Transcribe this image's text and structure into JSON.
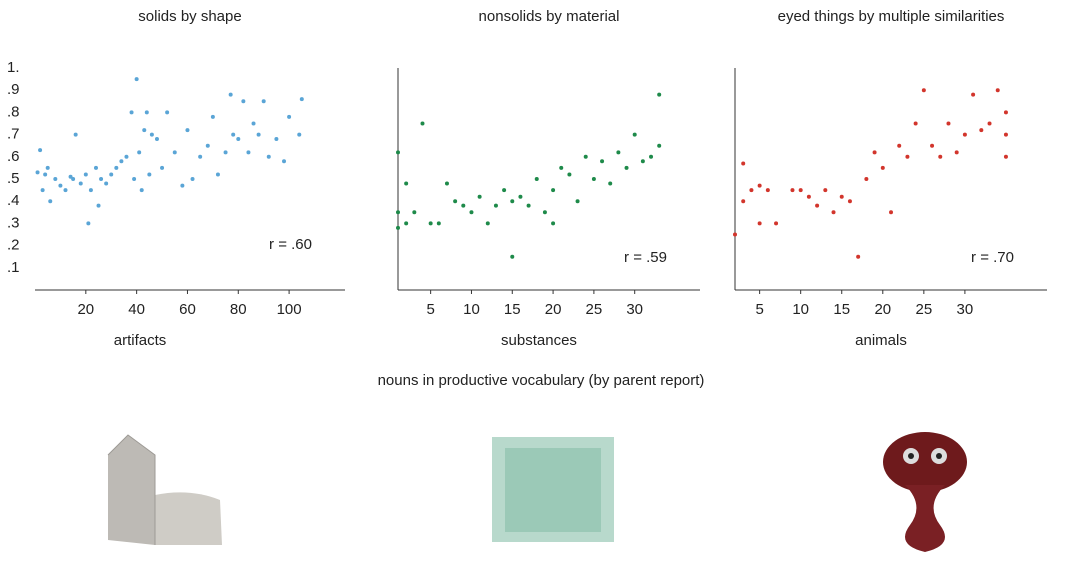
{
  "chart_data": [
    {
      "type": "scatter",
      "title": "solids by shape",
      "xlabel": "artifacts",
      "annotation": "r = .60",
      "color": "#5aa5d6",
      "y_axis": false,
      "x": [
        1,
        2,
        3,
        4,
        5,
        6,
        8,
        10,
        12,
        14,
        15,
        16,
        18,
        20,
        21,
        22,
        24,
        25,
        26,
        28,
        30,
        32,
        34,
        36,
        38,
        39,
        40,
        41,
        42,
        43,
        44,
        45,
        46,
        48,
        50,
        52,
        55,
        58,
        60,
        62,
        65,
        68,
        70,
        72,
        75,
        77,
        78,
        80,
        82,
        84,
        86,
        88,
        90,
        92,
        95,
        98,
        100,
        104,
        105
      ],
      "values": [
        0.53,
        0.63,
        0.45,
        0.52,
        0.55,
        0.4,
        0.5,
        0.47,
        0.45,
        0.51,
        0.5,
        0.7,
        0.48,
        0.52,
        0.3,
        0.45,
        0.55,
        0.38,
        0.5,
        0.48,
        0.52,
        0.55,
        0.58,
        0.6,
        0.8,
        0.5,
        0.95,
        0.62,
        0.45,
        0.72,
        0.8,
        0.52,
        0.7,
        0.68,
        0.55,
        0.8,
        0.62,
        0.47,
        0.72,
        0.5,
        0.6,
        0.65,
        0.78,
        0.52,
        0.62,
        0.88,
        0.7,
        0.68,
        0.85,
        0.62,
        0.75,
        0.7,
        0.85,
        0.6,
        0.68,
        0.58,
        0.78,
        0.7,
        0.86
      ],
      "xlim": [
        0,
        122
      ],
      "ylim": [
        0,
        1
      ],
      "xticks": [
        20,
        40,
        60,
        80,
        100
      ],
      "yticks": [
        {
          "value": 1,
          "label": "1."
        },
        {
          "value": 0.9,
          "label": ".9"
        },
        {
          "value": 0.8,
          "label": ".8"
        },
        {
          "value": 0.7,
          "label": ".7"
        },
        {
          "value": 0.6,
          "label": ".6"
        },
        {
          "value": 0.5,
          "label": ".5"
        },
        {
          "value": 0.4,
          "label": ".4"
        },
        {
          "value": 0.3,
          "label": ".3"
        },
        {
          "value": 0.2,
          "label": ".2"
        },
        {
          "value": 0.1,
          "label": ".1"
        }
      ]
    },
    {
      "type": "scatter",
      "title": "nonsolids by material",
      "xlabel": "substances",
      "annotation": "r = .59",
      "color": "#1e8a4a",
      "y_axis": true,
      "x": [
        1,
        1,
        1,
        2,
        2,
        3,
        4,
        5,
        6,
        7,
        8,
        9,
        10,
        11,
        12,
        13,
        14,
        15,
        15,
        16,
        17,
        18,
        19,
        20,
        20,
        21,
        22,
        23,
        24,
        25,
        26,
        27,
        28,
        29,
        30,
        31,
        32,
        33,
        33
      ],
      "values": [
        0.62,
        0.35,
        0.28,
        0.48,
        0.3,
        0.35,
        0.75,
        0.3,
        0.3,
        0.48,
        0.4,
        0.38,
        0.35,
        0.42,
        0.3,
        0.38,
        0.45,
        0.15,
        0.4,
        0.42,
        0.38,
        0.5,
        0.35,
        0.45,
        0.3,
        0.55,
        0.52,
        0.4,
        0.6,
        0.5,
        0.58,
        0.48,
        0.62,
        0.55,
        0.7,
        0.58,
        0.6,
        0.88,
        0.65
      ],
      "xlim": [
        1,
        38
      ],
      "ylim": [
        0,
        1
      ],
      "xticks": [
        5,
        10,
        15,
        20,
        25,
        30
      ],
      "yticks": []
    },
    {
      "type": "scatter",
      "title": "eyed things by multiple similarities",
      "xlabel": "animals",
      "annotation": "r = .70",
      "color": "#d2352c",
      "y_axis": true,
      "x": [
        2,
        3,
        3,
        4,
        5,
        5,
        6,
        7,
        9,
        10,
        11,
        12,
        13,
        14,
        15,
        16,
        17,
        18,
        19,
        20,
        21,
        22,
        23,
        24,
        25,
        26,
        27,
        28,
        29,
        30,
        31,
        32,
        33,
        34,
        35,
        35,
        35
      ],
      "values": [
        0.25,
        0.57,
        0.4,
        0.45,
        0.47,
        0.3,
        0.45,
        0.3,
        0.45,
        0.45,
        0.42,
        0.38,
        0.45,
        0.35,
        0.42,
        0.4,
        0.15,
        0.5,
        0.62,
        0.55,
        0.35,
        0.65,
        0.6,
        0.75,
        0.9,
        0.65,
        0.6,
        0.75,
        0.62,
        0.7,
        0.88,
        0.72,
        0.75,
        0.9,
        0.8,
        0.7,
        0.6
      ],
      "xlim": [
        2,
        40
      ],
      "ylim": [
        0,
        1
      ],
      "xticks": [
        5,
        10,
        15,
        20,
        25,
        30
      ],
      "yticks": []
    }
  ],
  "shared_xlabel": "nouns in productive vocabulary (by parent report)"
}
